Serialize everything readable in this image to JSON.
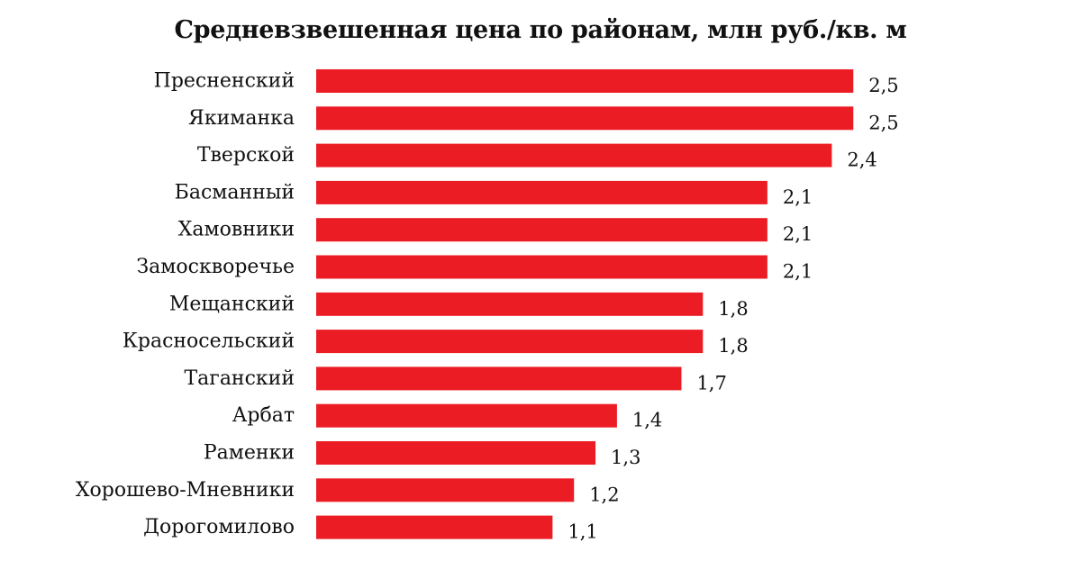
{
  "chart_data": {
    "type": "bar",
    "orientation": "horizontal",
    "title": "Средневзвешенная цена по районам, млн руб./кв. м",
    "xlabel": "",
    "ylabel": "",
    "categories": [
      "Пресненский",
      "Якиманка",
      "Тверской",
      "Басманный",
      "Хамовники",
      "Замоскворечье",
      "Мещанский",
      "Красносельский",
      "Таганский",
      "Арбат",
      "Раменки",
      "Хорошево-Мневники",
      "Дорогомилово"
    ],
    "values": [
      2.5,
      2.5,
      2.4,
      2.1,
      2.1,
      2.1,
      1.8,
      1.8,
      1.7,
      1.4,
      1.3,
      1.2,
      1.1
    ],
    "value_labels": [
      "2,5",
      "2,5",
      "2,4",
      "2,1",
      "2,1",
      "2,1",
      "1,8",
      "1,8",
      "1,7",
      "1,4",
      "1,3",
      "1,2",
      "1,1"
    ],
    "xlim": [
      0,
      2.5
    ],
    "grid": false,
    "legend": "none",
    "bar_color": "#ec1c24"
  }
}
